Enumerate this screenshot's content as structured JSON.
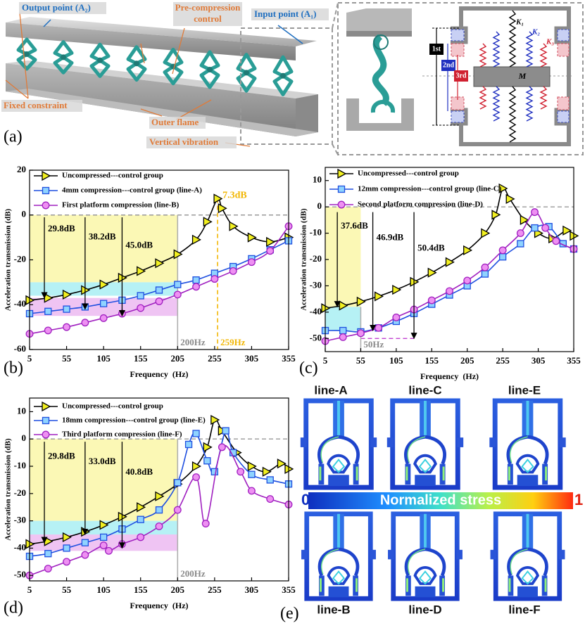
{
  "figure": {
    "panel_a": {
      "label": "(a)",
      "texts": {
        "output_point": "Output point (A₂)",
        "pre_compression": "Pre-compression",
        "control": "control",
        "input_point": "Input point (A₁)",
        "fixed_constraint": "Fixed constraint",
        "outer_flame": "Outer flame",
        "vertical_vibration": "Vertical vibration"
      },
      "schematic": {
        "first": "1st",
        "second": "2nd",
        "third": "3rd",
        "mass": "M",
        "k1": "K₁",
        "k2": "K₂",
        "k3": "K₃"
      }
    },
    "panel_e": {
      "label": "(e)",
      "images": [
        "line-A",
        "line-C",
        "line-E",
        "line-B",
        "line-D",
        "line-F"
      ],
      "colorbar": {
        "min_label": "0",
        "title": "Normalized stress",
        "max_label": "1"
      }
    }
  },
  "chart_data": [
    {
      "type": "line",
      "label": "(b)",
      "xlabel": "Frequency  (Hz)",
      "ylabel": "Acceleration transmission (dB)",
      "xlim": [
        5,
        355
      ],
      "ylim": [
        -60,
        20
      ],
      "xticks": [
        5,
        55,
        105,
        155,
        205,
        255,
        305,
        355
      ],
      "yticks": [
        -60,
        -40,
        -20,
        0,
        20
      ],
      "series": [
        {
          "name": "Uncompressed---control group",
          "color": "#000000",
          "marker": "triangle",
          "marker_color": "#f2f020",
          "x": [
            5,
            30,
            55,
            80,
            105,
            130,
            155,
            180,
            205,
            230,
            245,
            259,
            265,
            280,
            305,
            330,
            355
          ],
          "values": [
            -38,
            -37,
            -35.5,
            -33.5,
            -31,
            -28,
            -25,
            -21.5,
            -17.5,
            -11,
            -3,
            7.3,
            3,
            -5,
            -10,
            -12,
            -10
          ]
        },
        {
          "name": "4mm compression---control group (line-A)",
          "color": "#1f4fe0",
          "marker": "square",
          "marker_color": "#8fd3ff",
          "x": [
            5,
            30,
            55,
            80,
            105,
            130,
            155,
            180,
            205,
            230,
            255,
            280,
            305,
            330,
            355
          ],
          "values": [
            -44,
            -43,
            -42,
            -41,
            -39.5,
            -38,
            -36,
            -33.5,
            -31,
            -29,
            -26,
            -23,
            -19.5,
            -15.5,
            -11.5
          ]
        },
        {
          "name": "First platform compression (line-B)",
          "color": "#a020c0",
          "marker": "circle",
          "marker_color": "#ee90f2",
          "x": [
            5,
            30,
            55,
            80,
            105,
            130,
            155,
            180,
            205,
            230,
            255,
            280,
            305,
            330,
            355
          ],
          "values": [
            -53,
            -51.5,
            -50,
            -48,
            -46,
            -44,
            -41.5,
            -38.5,
            -35.5,
            -32,
            -28.5,
            -25,
            -21,
            -16,
            -5
          ]
        }
      ],
      "bands": [
        {
          "x": [
            5,
            205
          ],
          "y": [
            -30,
            0
          ],
          "color": "#fbf8b5"
        },
        {
          "x": [
            5,
            205
          ],
          "y": [
            -36,
            -30
          ],
          "color": "#b6f1f5"
        },
        {
          "x": [
            5,
            205
          ],
          "y": [
            -45,
            -37
          ],
          "color": "#efc4f3"
        }
      ],
      "hlines": [
        {
          "y": 0,
          "x": [
            5,
            355
          ],
          "color": "#999999",
          "dash": true
        }
      ],
      "vlines": [
        {
          "x": 259,
          "y": [
            7.3,
            -60
          ],
          "color": "#f2b705",
          "dash": true,
          "label": "259Hz"
        },
        {
          "x": 205,
          "y": [
            0,
            -60
          ],
          "color": "#b0b0b0",
          "dash": false,
          "label": "200Hz"
        }
      ],
      "arrows": [
        {
          "label": "29.8dB",
          "x": 25,
          "y": [
            -1,
            -37
          ]
        },
        {
          "label": "38.2dB",
          "x": 80,
          "y": [
            -1,
            -42
          ]
        },
        {
          "label": "45.0dB",
          "x": 130,
          "y": [
            -1,
            -45
          ]
        }
      ],
      "point_labels": [
        {
          "label": "7.3dB",
          "x": 259,
          "y": 7.3,
          "color": "#f2b705"
        }
      ]
    },
    {
      "type": "line",
      "label": "(c)",
      "xlabel": "Frequency  (Hz)",
      "ylabel": "Acceleration transmission (dB)",
      "xlim": [
        5,
        355
      ],
      "ylim": [
        -55,
        15
      ],
      "xticks": [
        5,
        55,
        105,
        155,
        205,
        255,
        305,
        355
      ],
      "yticks": [
        -50,
        -40,
        -30,
        -20,
        -10,
        0,
        10
      ],
      "series": [
        {
          "name": "Uncompressed---control group",
          "color": "#000000",
          "marker": "triangle",
          "marker_color": "#f2f020",
          "x": [
            5,
            30,
            55,
            80,
            105,
            130,
            155,
            180,
            205,
            230,
            245,
            255,
            265,
            285,
            305,
            325,
            345,
            355
          ],
          "values": [
            -38.5,
            -37.5,
            -36,
            -34,
            -31.5,
            -28.5,
            -25,
            -21,
            -16.5,
            -10,
            -3,
            7,
            3,
            -5,
            -10,
            -12,
            -9,
            -11
          ]
        },
        {
          "name": "12mm compression---control group (line-C)",
          "color": "#1f4fe0",
          "marker": "square",
          "marker_color": "#8fd3ff",
          "x": [
            5,
            30,
            55,
            80,
            105,
            130,
            155,
            180,
            205,
            230,
            255,
            280,
            300,
            320,
            340,
            355
          ],
          "values": [
            -47,
            -47,
            -47.5,
            -46,
            -43.5,
            -40.5,
            -37,
            -33.5,
            -30,
            -25.5,
            -19,
            -14,
            -8,
            -7.5,
            -14,
            -16
          ]
        },
        {
          "name": "Second platform compression (line-D)",
          "color": "#a020c0",
          "marker": "circle",
          "marker_color": "#ee90f2",
          "x": [
            5,
            30,
            55,
            80,
            105,
            130,
            155,
            180,
            205,
            230,
            255,
            280,
            300,
            315,
            330,
            355
          ],
          "values": [
            -51,
            -49.5,
            -48,
            -46,
            -42,
            -39,
            -35.5,
            -32,
            -28,
            -23,
            -16.5,
            -10,
            -2,
            -8,
            -13,
            -16
          ]
        }
      ],
      "bands": [
        {
          "x": [
            5,
            55
          ],
          "y": [
            -38,
            0
          ],
          "color": "#fbf8b5"
        },
        {
          "x": [
            5,
            55
          ],
          "y": [
            -47,
            -38
          ],
          "color": "#b6f1f5"
        }
      ],
      "hlines": [
        {
          "y": 0,
          "x": [
            5,
            355
          ],
          "color": "#999999",
          "dash": true
        },
        {
          "y": -50,
          "x": [
            55,
            130
          ],
          "color": "#c040d0",
          "dash": true
        }
      ],
      "vlines": [
        {
          "x": 55,
          "y": [
            -38,
            -55
          ],
          "color": "#b0b0b0",
          "dash": false,
          "label": "50Hz"
        }
      ],
      "arrows": [
        {
          "label": "37.6dB",
          "x": 22,
          "y": [
            -2,
            -38
          ]
        },
        {
          "label": "46.9dB",
          "x": 72,
          "y": [
            -2,
            -47
          ]
        },
        {
          "label": "50.4dB",
          "x": 130,
          "y": [
            -2,
            -50
          ]
        }
      ],
      "point_labels": []
    },
    {
      "type": "line",
      "label": "(d)",
      "xlabel": "Frequency  (Hz)",
      "ylabel": "Acceleration transmission (dB)",
      "xlim": [
        5,
        355
      ],
      "ylim": [
        -52,
        15
      ],
      "xticks": [
        5,
        55,
        105,
        155,
        205,
        255,
        305,
        355
      ],
      "yticks": [
        -50,
        -40,
        -30,
        -20,
        -10,
        0,
        10
      ],
      "series": [
        {
          "name": "Uncompressed---control group",
          "color": "#000000",
          "marker": "triangle",
          "marker_color": "#f2f020",
          "x": [
            5,
            30,
            55,
            80,
            105,
            130,
            155,
            180,
            205,
            230,
            245,
            255,
            265,
            285,
            305,
            325,
            345,
            355
          ],
          "values": [
            -38.5,
            -37.5,
            -36,
            -34,
            -31.5,
            -28.5,
            -25,
            -21,
            -16.5,
            -10,
            -3,
            7,
            3,
            -5,
            -10,
            -12,
            -9,
            -11
          ]
        },
        {
          "name": "18mm compression---control group (line-E)",
          "color": "#1f4fe0",
          "marker": "square",
          "marker_color": "#8fd3ff",
          "x": [
            5,
            30,
            55,
            80,
            105,
            130,
            155,
            180,
            205,
            220,
            230,
            245,
            255,
            270,
            280,
            305,
            330,
            355
          ],
          "values": [
            -43,
            -42,
            -40,
            -38,
            -36,
            -33,
            -29.5,
            -26,
            -16,
            -2,
            2,
            -8,
            -12,
            3,
            -5,
            -13,
            -15,
            -16.5
          ]
        },
        {
          "name": "Third platform compression (line-F)",
          "color": "#a020c0",
          "marker": "circle",
          "marker_color": "#ee90f2",
          "x": [
            5,
            30,
            55,
            80,
            105,
            112,
            130,
            155,
            180,
            205,
            230,
            243,
            265,
            290,
            305,
            330,
            355
          ],
          "values": [
            -50,
            -47.5,
            -45,
            -42.5,
            -39,
            -41,
            -38.5,
            -36,
            -32,
            -26,
            -14,
            -31,
            -3,
            -12,
            -19,
            -22,
            -24
          ]
        }
      ],
      "bands": [
        {
          "x": [
            5,
            205
          ],
          "y": [
            -30,
            0
          ],
          "color": "#fbf8b5"
        },
        {
          "x": [
            5,
            205
          ],
          "y": [
            -35,
            -30
          ],
          "color": "#b6f1f5"
        },
        {
          "x": [
            5,
            205
          ],
          "y": [
            -41,
            -35
          ],
          "color": "#efc4f3"
        }
      ],
      "hlines": [
        {
          "y": 0,
          "x": [
            5,
            355
          ],
          "color": "#999999",
          "dash": true
        }
      ],
      "vlines": [
        {
          "x": 205,
          "y": [
            0,
            -52
          ],
          "color": "#b0b0b0",
          "dash": false,
          "label": "200Hz"
        }
      ],
      "arrows": [
        {
          "label": "29.8dB",
          "x": 25,
          "y": [
            -1,
            -38
          ]
        },
        {
          "label": "33.0dB",
          "x": 80,
          "y": [
            -1,
            -35
          ]
        },
        {
          "label": "40.8dB",
          "x": 130,
          "y": [
            -1,
            -40
          ]
        }
      ],
      "point_labels": []
    }
  ]
}
